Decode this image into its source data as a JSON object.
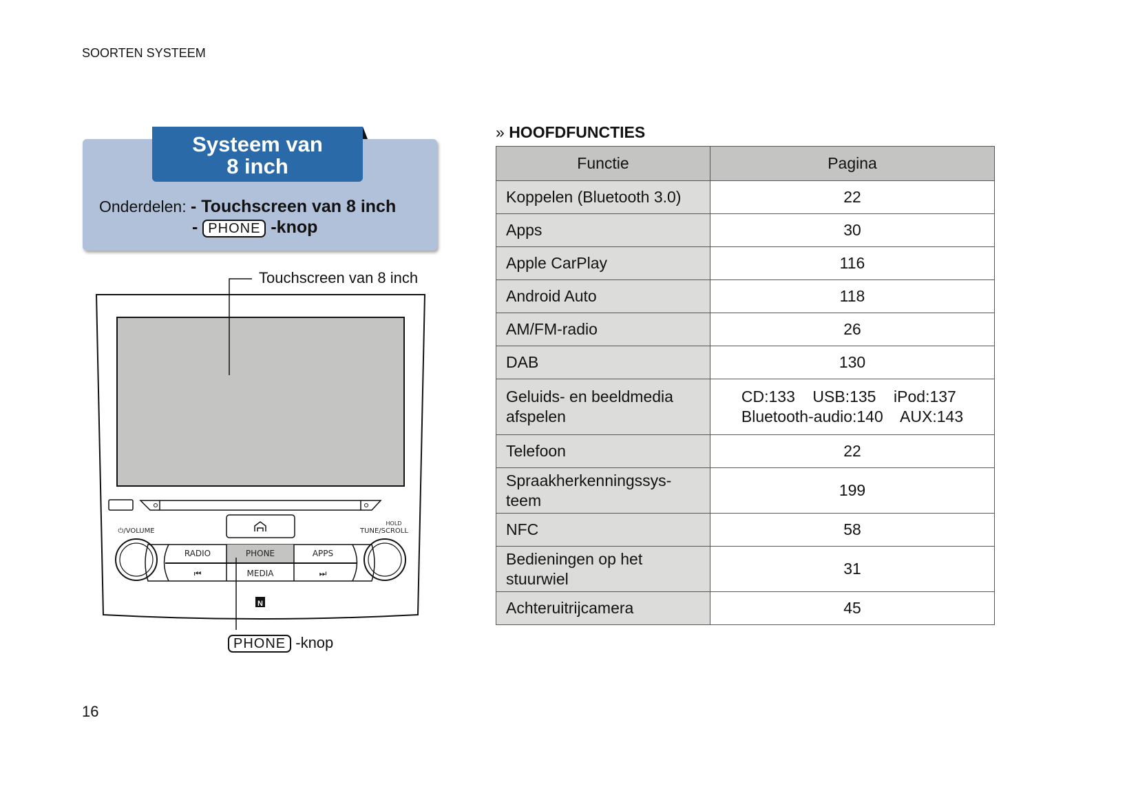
{
  "header": {
    "section": "SOORTEN SYSTEEM"
  },
  "page_number": "16",
  "infobox": {
    "title_line1": "Systeem van",
    "title_line2": "8 inch",
    "parts_label": "Onderdelen:",
    "part1": "- Touchscreen van 8 inch",
    "part2_prefix": "-",
    "part2_key": "PHONE",
    "part2_suffix": "-knop"
  },
  "diagram": {
    "touchscreen_label": "Touchscreen van 8 inch",
    "phone_key": "PHONE",
    "phone_suffix": "-knop",
    "volume_label": "⏻/VOLUME",
    "hold_label": "HOLD",
    "tune_label": "TUNE/SCROLL",
    "buttons": [
      "RADIO",
      "PHONE",
      "APPS",
      "MEDIA"
    ]
  },
  "functions": {
    "heading": "HOOFDFUNCTIES",
    "columns": [
      "Functie",
      "Pagina"
    ],
    "rows": [
      {
        "f": "Koppelen (Bluetooth 3.0)",
        "p": "22"
      },
      {
        "f": "Apps",
        "p": "30"
      },
      {
        "f": "Apple CarPlay",
        "p": "116"
      },
      {
        "f": "Android Auto",
        "p": "118"
      },
      {
        "f": "AM/FM-radio",
        "p": "26"
      },
      {
        "f": "DAB",
        "p": "130"
      },
      {
        "f": "Geluids- en beeldmedia afspelen",
        "p1": "CD:133    USB:135    iPod:137",
        "p2": "Bluetooth-audio:140    AUX:143"
      },
      {
        "f": "Telefoon",
        "p": "22"
      },
      {
        "f": "Spraakherkenningssys-teem",
        "p": "199"
      },
      {
        "f": "NFC",
        "p": "58"
      },
      {
        "f": "Bedieningen op het stuurwiel",
        "p": "31"
      },
      {
        "f": "Achteruitrijcamera",
        "p": "45"
      }
    ]
  }
}
